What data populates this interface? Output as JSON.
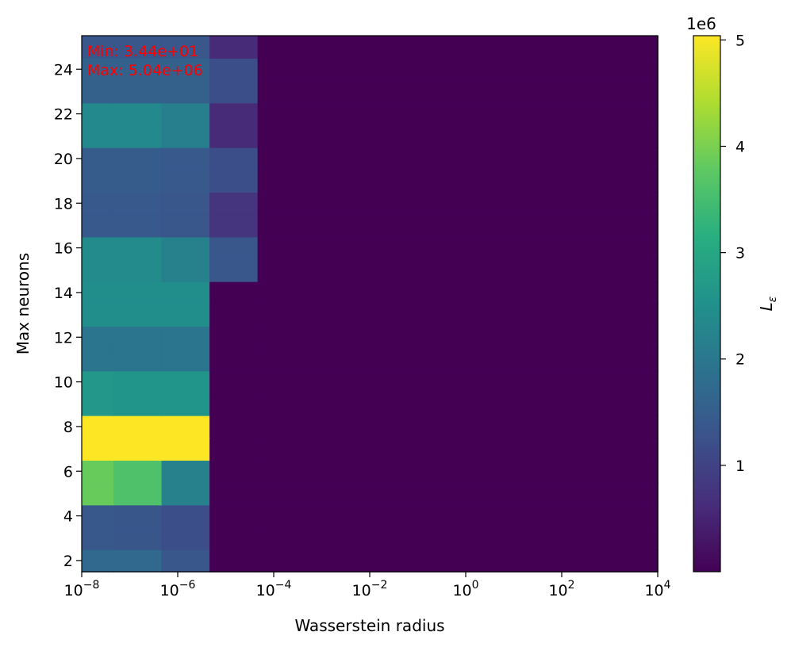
{
  "chart_data": {
    "type": "heatmap",
    "title": "",
    "xlabel": "Wasserstein radius",
    "ylabel": "Max neurons",
    "x_scale": "log",
    "xlim": [
      1e-08,
      10000.0
    ],
    "ylim": [
      1.5,
      25.5
    ],
    "x_ticks": [
      {
        "value": -8,
        "base": "10",
        "exp": "−8"
      },
      {
        "value": -6,
        "base": "10",
        "exp": "−6"
      },
      {
        "value": -4,
        "base": "10",
        "exp": "−4"
      },
      {
        "value": -2,
        "base": "10",
        "exp": "−2"
      },
      {
        "value": 0,
        "base": "10",
        "exp": "0"
      },
      {
        "value": 2,
        "base": "10",
        "exp": "2"
      },
      {
        "value": 4,
        "base": "10",
        "exp": "4"
      }
    ],
    "y_ticks": [
      "2",
      "4",
      "6",
      "8",
      "10",
      "12",
      "14",
      "16",
      "18",
      "20",
      "22",
      "24"
    ],
    "colorbar": {
      "label": "L",
      "label_sub": "ε",
      "offset_text": "1e6",
      "ticks": [
        "1",
        "2",
        "3",
        "4",
        "5"
      ],
      "range": [
        34.4,
        5040000.0
      ]
    },
    "annotations": [
      "Min: 3.44e+01",
      "Max: 5.04e+06"
    ],
    "annotation_color": "#ff0000",
    "colormap": "viridis",
    "columns_log10_edges": [
      -8,
      -7.333,
      -6.333,
      -5.333,
      -4.333,
      4
    ],
    "rows": [
      {
        "y_edges": [
          1.5,
          2.5
        ],
        "values": [
          1720000.0,
          1720000.0,
          1350000.0,
          34.4,
          34.4
        ]
      },
      {
        "y_edges": [
          2.5,
          3.5
        ],
        "values": [
          1380000.0,
          1330000.0,
          1200000.0,
          34.4,
          34.4
        ]
      },
      {
        "y_edges": [
          3.5,
          4.5
        ],
        "values": [
          1380000.0,
          1330000.0,
          1200000.0,
          34.4,
          34.4
        ]
      },
      {
        "y_edges": [
          4.5,
          5.5
        ],
        "values": [
          3850000.0,
          3600000.0,
          2200000.0,
          34.4,
          34.4
        ]
      },
      {
        "y_edges": [
          5.5,
          6.5
        ],
        "values": [
          3850000.0,
          3600000.0,
          2200000.0,
          34.4,
          34.4
        ]
      },
      {
        "y_edges": [
          6.5,
          7.5
        ],
        "values": [
          5040000.0,
          5040000.0,
          5040000.0,
          34.4,
          34.4
        ]
      },
      {
        "y_edges": [
          7.5,
          8.5
        ],
        "values": [
          5040000.0,
          5040000.0,
          5040000.0,
          34.4,
          34.4
        ]
      },
      {
        "y_edges": [
          8.5,
          9.5
        ],
        "values": [
          2650000.0,
          2600000.0,
          2600000.0,
          34.4,
          34.4
        ]
      },
      {
        "y_edges": [
          9.5,
          10.5
        ],
        "values": [
          2650000.0,
          2600000.0,
          2600000.0,
          34.4,
          34.4
        ]
      },
      {
        "y_edges": [
          10.5,
          11.5
        ],
        "values": [
          1950000.0,
          1950000.0,
          1950000.0,
          34.4,
          34.4
        ]
      },
      {
        "y_edges": [
          11.5,
          12.5
        ],
        "values": [
          1950000.0,
          1950000.0,
          1950000.0,
          34.4,
          34.4
        ]
      },
      {
        "y_edges": [
          12.5,
          13.5
        ],
        "values": [
          2450000.0,
          2450000.0,
          2450000.0,
          34.4,
          34.4
        ]
      },
      {
        "y_edges": [
          13.5,
          14.5
        ],
        "values": [
          2450000.0,
          2450000.0,
          2450000.0,
          34.4,
          34.4
        ]
      },
      {
        "y_edges": [
          14.5,
          15.5
        ],
        "values": [
          2400000.0,
          2400000.0,
          2200000.0,
          1350000.0,
          34.4
        ]
      },
      {
        "y_edges": [
          15.5,
          16.5
        ],
        "values": [
          2400000.0,
          2400000.0,
          2200000.0,
          1350000.0,
          34.4
        ]
      },
      {
        "y_edges": [
          16.5,
          17.5
        ],
        "values": [
          1400000.0,
          1400000.0,
          1350000.0,
          750000.0,
          34.4
        ]
      },
      {
        "y_edges": [
          17.5,
          18.5
        ],
        "values": [
          1400000.0,
          1400000.0,
          1350000.0,
          750000.0,
          34.4
        ]
      },
      {
        "y_edges": [
          18.5,
          19.5
        ],
        "values": [
          1450000.0,
          1450000.0,
          1400000.0,
          1200000.0,
          34.4
        ]
      },
      {
        "y_edges": [
          19.5,
          20.5
        ],
        "values": [
          1450000.0,
          1450000.0,
          1400000.0,
          1200000.0,
          34.4
        ]
      },
      {
        "y_edges": [
          20.5,
          21.5
        ],
        "values": [
          2350000.0,
          2350000.0,
          2150000.0,
          600000.0,
          34.4
        ]
      },
      {
        "y_edges": [
          21.5,
          22.5
        ],
        "values": [
          2350000.0,
          2350000.0,
          2150000.0,
          600000.0,
          34.4
        ]
      },
      {
        "y_edges": [
          22.5,
          23.5
        ],
        "values": [
          1550000.0,
          1550000.0,
          1550000.0,
          1200000.0,
          34.4
        ]
      },
      {
        "y_edges": [
          23.5,
          24.5
        ],
        "values": [
          1550000.0,
          1550000.0,
          1550000.0,
          1200000.0,
          34.4
        ]
      },
      {
        "y_edges": [
          24.5,
          25.5
        ],
        "values": [
          1350000.0,
          1350000.0,
          1350000.0,
          600000.0,
          34.4
        ]
      }
    ]
  }
}
